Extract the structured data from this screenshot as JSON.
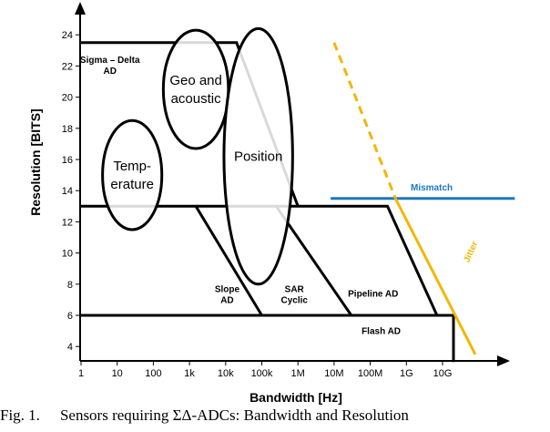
{
  "chart_data": {
    "type": "area",
    "xlabel": "Bandwidth [Hz]",
    "ylabel": "Resolution [BITS]",
    "x_ticks": [
      "1",
      "10",
      "100",
      "1k",
      "10k",
      "100k",
      "1M",
      "10M",
      "100M",
      "1G",
      "10G"
    ],
    "y_ticks": [
      4,
      6,
      8,
      10,
      12,
      14,
      16,
      18,
      20,
      22,
      24
    ],
    "x_scale": "log10",
    "xlim": [
      1,
      100000000000
    ],
    "ylim": [
      3,
      25
    ],
    "regions": [
      {
        "name": "Sigma – Delta AD",
        "label_lines": [
          "Sigma – Delta",
          "AD"
        ],
        "boundary": [
          [
            1,
            23.5
          ],
          [
            20000,
            23.5
          ],
          [
            1000000,
            13
          ]
        ],
        "label_at": [
          6.3,
          22.2
        ],
        "label_x_offset": 0
      },
      {
        "name": "Slope AD",
        "label_lines": [
          "Slope",
          "AD"
        ],
        "boundary": [
          [
            1,
            13
          ],
          [
            1500,
            13
          ],
          [
            100000,
            6
          ]
        ],
        "label_at": [
          11000,
          7.5
        ],
        "label_x_offset": 0
      },
      {
        "name": "SAR Cyclic",
        "label_lines": [
          "SAR",
          "Cyclic"
        ],
        "boundary": [
          [
            1500,
            13
          ],
          [
            250000,
            13
          ],
          [
            30000000,
            6
          ]
        ],
        "label_at": [
          630000,
          7.5
        ],
        "label_x_offset": 4
      },
      {
        "name": "Pipeline AD",
        "label_lines": [
          "Pipeline AD"
        ],
        "boundary": [
          [
            250000,
            13
          ],
          [
            300000000,
            13
          ],
          [
            7000000000,
            6
          ]
        ],
        "label_at": [
          120000000,
          7.2
        ],
        "label_x_offset": 0
      },
      {
        "name": "Flash AD",
        "label_lines": [
          "Flash AD"
        ],
        "boundary": [
          [
            1,
            6
          ],
          [
            20000000000,
            6
          ],
          [
            20000000000,
            3
          ]
        ],
        "label_at": [
          200000000,
          4.8
        ],
        "label_x_offset": 0
      }
    ],
    "bubbles": [
      {
        "name": "Temperature",
        "label_lines": [
          "Temp-",
          "erature"
        ],
        "center": [
          26,
          15
        ],
        "rx_decades": 0.82,
        "ry_bits": 3.5
      },
      {
        "name": "Geo and acoustic",
        "label_lines": [
          "Geo and",
          "acoustic"
        ],
        "center": [
          1500,
          20.5
        ],
        "rx_decades": 0.9,
        "ry_bits": 3.8
      },
      {
        "name": "Position",
        "label_lines": [
          "Position"
        ],
        "center": [
          80000,
          16.2
        ],
        "rx_decades": 0.95,
        "ry_bits": 8.2
      }
    ],
    "lines": [
      {
        "name": "Mismatch",
        "color": "#1f77c4",
        "points": [
          [
            8000000,
            13.5
          ],
          [
            1000000000000,
            13.5
          ]
        ],
        "label_at": [
          5000000000,
          14.0
        ],
        "label_x_offset": 0
      },
      {
        "name": "Jitter",
        "color": "#f2b705",
        "solid_points": [
          [
            500000000,
            13.5
          ],
          [
            80000000000,
            3.5
          ]
        ],
        "dashed_points": [
          [
            10000000,
            23.5
          ],
          [
            500000000,
            13.5
          ]
        ],
        "label_at": [
          100000000000,
          10.0
        ],
        "label_x_offset": -6
      }
    ]
  },
  "caption": {
    "label": "Fig. 1.",
    "text": "Sensors requiring ΣΔ-ADCs: Bandwidth and Resolution"
  }
}
